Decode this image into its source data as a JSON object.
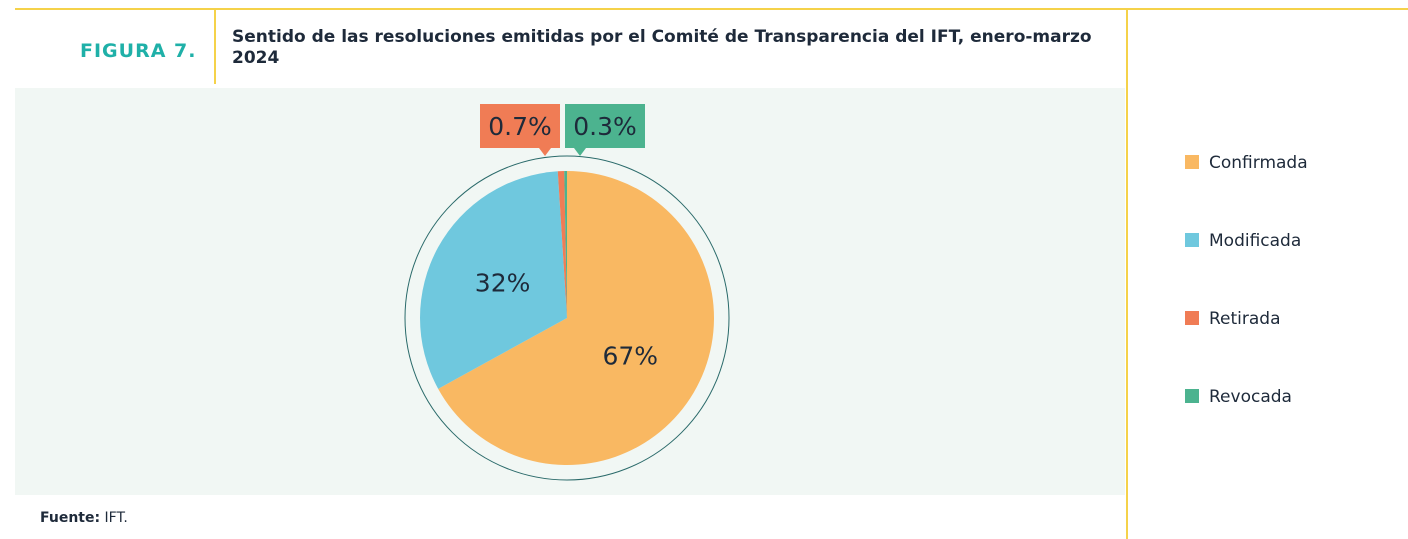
{
  "figure_label": "FIGURA 7.",
  "chart_data": {
    "type": "pie",
    "title": "Sentido de las resoluciones emitidas por el Comité de Transparencia del IFT, enero-marzo 2024",
    "categories": [
      "Confirmada",
      "Modificada",
      "Retirada",
      "Revocada"
    ],
    "values": [
      67,
      32,
      0.7,
      0.3
    ],
    "value_labels": [
      "67%",
      "32%",
      "0.7%",
      "0.3%"
    ],
    "colors": [
      "#f9b862",
      "#6fc8de",
      "#f07c55",
      "#4cb38f"
    ],
    "legend": "right"
  },
  "source": {
    "label": "Fuente:",
    "text": "IFT."
  }
}
